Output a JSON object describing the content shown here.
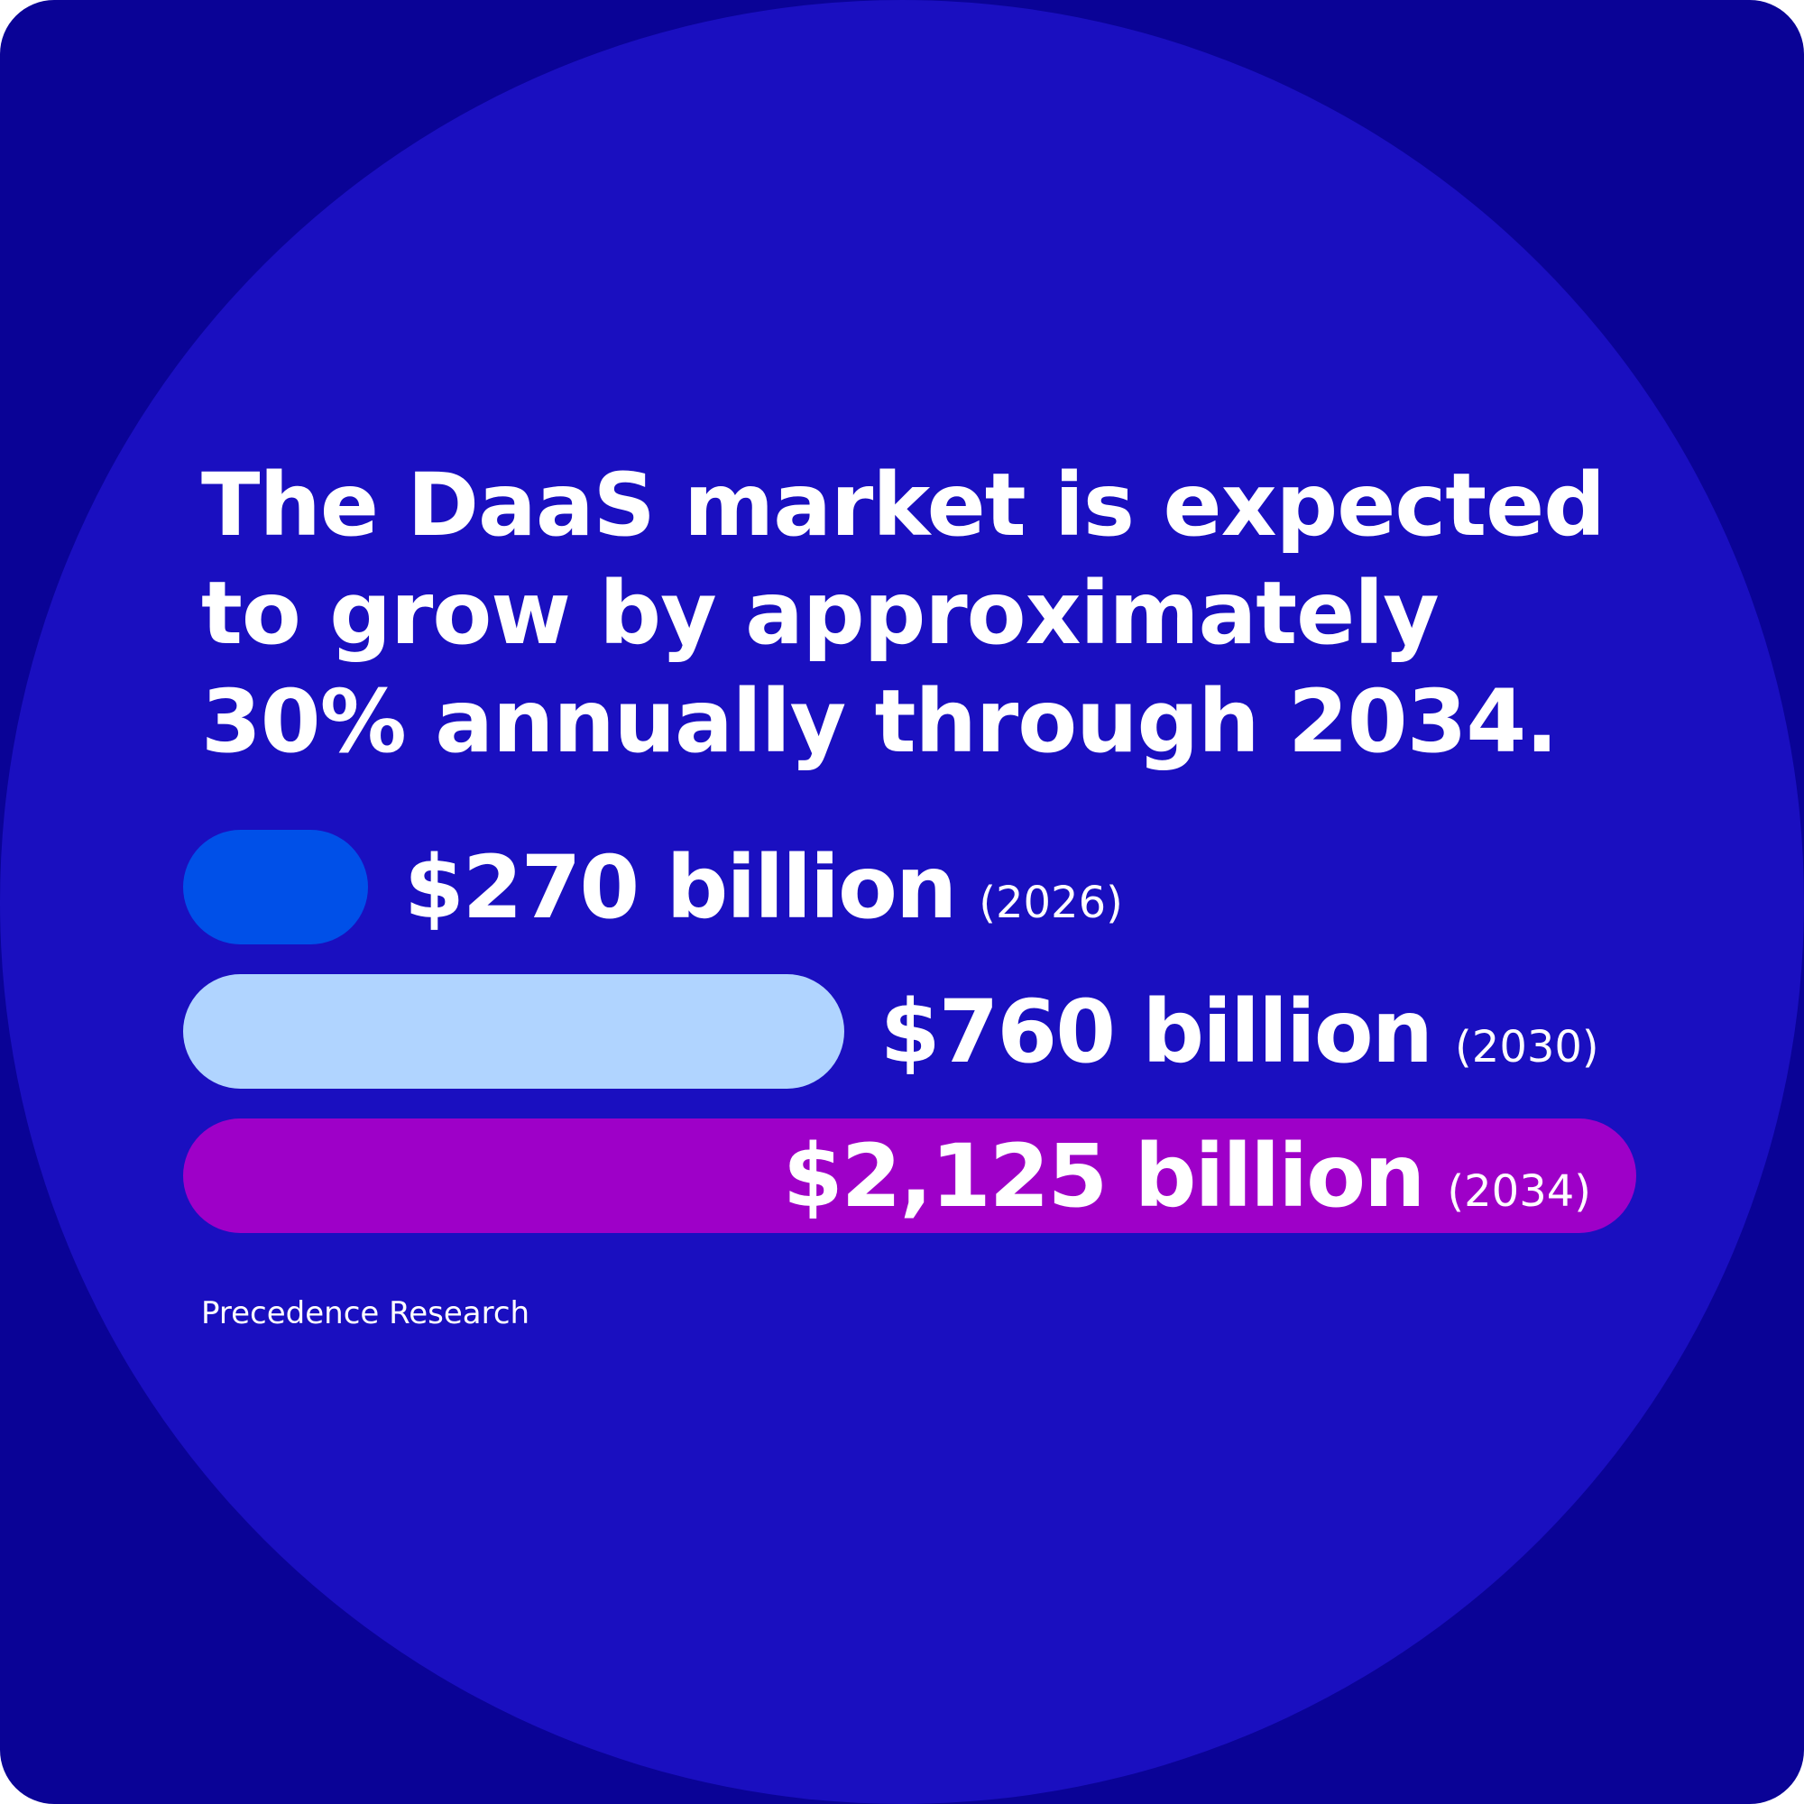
{
  "title": "The DaaS market is expected to grow by approximately 30% annually through 2034.",
  "source": "Precedence Research",
  "colors": {
    "background": "#0a0396",
    "circle": "#1a0fc0"
  },
  "chart_data": {
    "type": "bar",
    "orientation": "horizontal",
    "categories": [
      "2026",
      "2030",
      "2034"
    ],
    "values": [
      270,
      760,
      2125
    ],
    "unit": "billion USD",
    "labels": [
      "$270 billion",
      "$760 billion",
      "$2,125 billion"
    ],
    "year_labels": [
      "(2026)",
      "(2030)",
      "(2034)"
    ],
    "colors": [
      "#0050e8",
      "#b0d4ff",
      "#9e00c8"
    ],
    "grid": false
  }
}
